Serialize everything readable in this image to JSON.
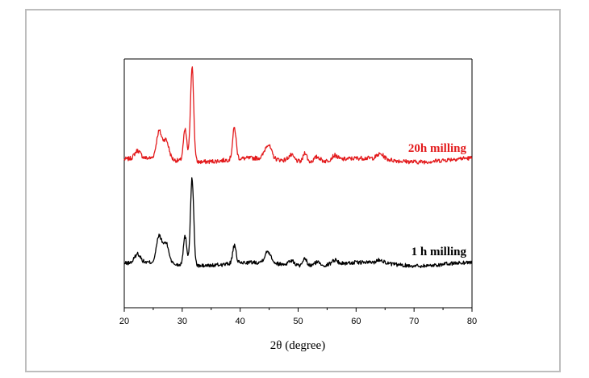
{
  "chart_data": {
    "type": "line",
    "xlabel": "2θ (degree)",
    "ylabel": "",
    "xlim": [
      20,
      80
    ],
    "xticks": [
      20,
      30,
      40,
      50,
      60,
      70,
      80
    ],
    "y_ticks_labeled": false,
    "grid": false,
    "legend": "labels placed at right end of each curve",
    "peaks_deg": [
      22.3,
      26.0,
      27.2,
      30.5,
      31.7,
      39.0,
      44.8,
      48.8,
      51.2,
      53.3,
      56.3,
      64.2
    ],
    "series": [
      {
        "name": "20h milling",
        "color": "#e31a1c",
        "baseline": 0.05,
        "peak_heights": [
          0.08,
          0.28,
          0.2,
          0.33,
          1.0,
          0.33,
          0.15,
          0.06,
          0.1,
          0.05,
          0.05,
          0.05
        ]
      },
      {
        "name": "1 h milling",
        "color": "#000000",
        "baseline": 0.0,
        "peak_heights": [
          0.1,
          0.3,
          0.23,
          0.33,
          1.0,
          0.2,
          0.13,
          0.05,
          0.08,
          0.04,
          0.05,
          0.04
        ]
      }
    ]
  }
}
